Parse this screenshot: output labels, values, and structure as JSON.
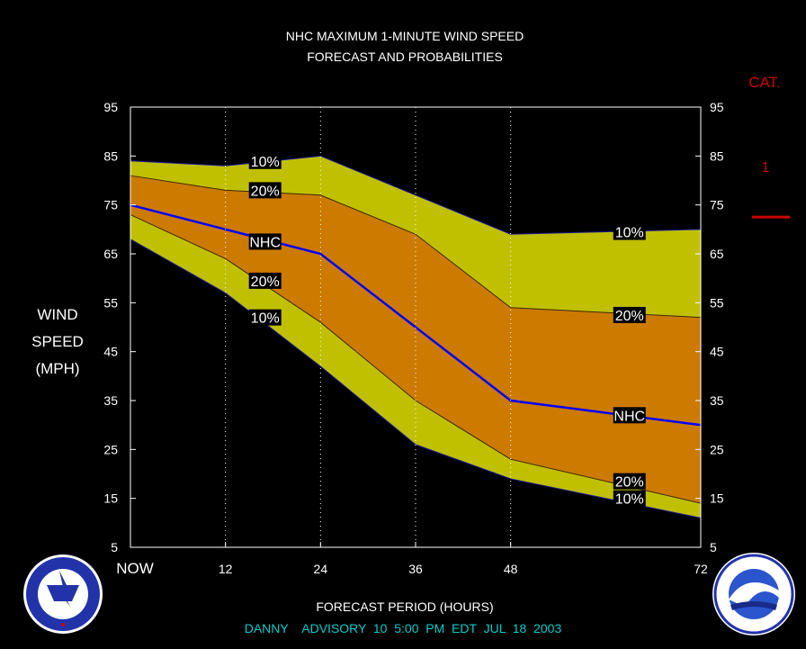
{
  "title_line1": "NHC MAXIMUM 1-MINUTE WIND SPEED",
  "title_line2": "FORECAST AND PROBABILITIES",
  "cat_label": "CAT.",
  "cat_levels": [
    {
      "label": "1",
      "threshold_mph": 74
    }
  ],
  "ylabel_lines": [
    "WIND",
    "SPEED",
    "(MPH)"
  ],
  "xlabel": "FORECAST PERIOD (HOURS)",
  "advisory_line": "DANNY    ADVISORY  10  5:00  PM  EDT  JUL  18  2003",
  "colors": {
    "background": "#000000",
    "band10": "#c0c000",
    "band20": "#cc7a00",
    "nhc_line": "#0000ff",
    "title": "#ffffff",
    "cat": "#cc0000",
    "advisory": "#00cccc",
    "grid": "#ffffff"
  },
  "chart_data": {
    "type": "area",
    "x": [
      0,
      12,
      24,
      36,
      48,
      72
    ],
    "x_tick_labels": [
      "NOW",
      "12",
      "24",
      "36",
      "48",
      "72"
    ],
    "x_range": [
      0,
      72
    ],
    "y_ticks": [
      95,
      85,
      75,
      65,
      55,
      45,
      35,
      25,
      15,
      5
    ],
    "ylim": [
      5,
      95
    ],
    "grid_vertical": [
      12,
      24,
      36,
      48
    ],
    "series": [
      {
        "name": "10%",
        "role": "upper10",
        "x": [
          0,
          12,
          24,
          36,
          48,
          72
        ],
        "values": [
          84,
          83,
          85,
          77,
          69,
          70
        ]
      },
      {
        "name": "20%",
        "role": "upper20",
        "x": [
          0,
          12,
          24,
          36,
          48,
          72
        ],
        "values": [
          81,
          78,
          77,
          69,
          54,
          52
        ]
      },
      {
        "name": "NHC",
        "role": "nhc",
        "x": [
          0,
          12,
          24,
          36,
          48,
          72
        ],
        "values": [
          75,
          70,
          65,
          50,
          35,
          30
        ]
      },
      {
        "name": "20%",
        "role": "lower20",
        "x": [
          0,
          12,
          24,
          36,
          48,
          72
        ],
        "values": [
          73,
          64,
          51,
          35,
          23,
          14
        ]
      },
      {
        "name": "10%",
        "role": "lower10",
        "x": [
          0,
          12,
          24,
          36,
          48,
          72
        ],
        "values": [
          68,
          57,
          42,
          26,
          19,
          11
        ]
      }
    ],
    "annotations": [
      {
        "text": "10%",
        "x": 17,
        "y": 84
      },
      {
        "text": "20%",
        "x": 17,
        "y": 78
      },
      {
        "text": "NHC",
        "x": 17,
        "y": 67.5
      },
      {
        "text": "20%",
        "x": 17,
        "y": 59.5
      },
      {
        "text": "10%",
        "x": 17,
        "y": 52
      },
      {
        "text": "10%",
        "x": 63,
        "y": 69.5
      },
      {
        "text": "20%",
        "x": 63,
        "y": 52.5
      },
      {
        "text": "NHC",
        "x": 63,
        "y": 32
      },
      {
        "text": "20%",
        "x": 63,
        "y": 18.5
      },
      {
        "text": "10%",
        "x": 63,
        "y": 15
      }
    ]
  }
}
